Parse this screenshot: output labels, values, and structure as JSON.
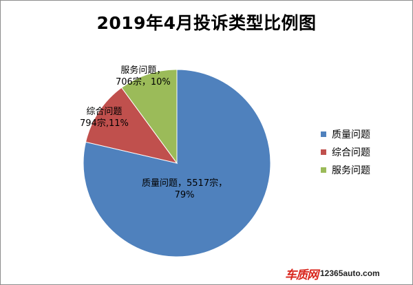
{
  "chart_data": {
    "type": "pie",
    "title": "2019年4月投诉类型比例图",
    "categories": [
      "质量问题",
      "综合问题",
      "服务问题"
    ],
    "values": [
      5517,
      794,
      706
    ],
    "percent_labels": [
      "79%",
      "11%",
      "10%"
    ],
    "data_labels": [
      [
        "质量问题，5517宗，",
        "79%"
      ],
      [
        "综合问题",
        "794宗,11%"
      ],
      [
        "服务问题，",
        "706宗，10%"
      ]
    ],
    "colors": [
      "#4f81bd",
      "#c0504d",
      "#9bbb59"
    ],
    "legend": {
      "position": "right",
      "entries": [
        "质量问题",
        "综合问题",
        "服务问题"
      ]
    }
  },
  "watermark": {
    "logo_text": "车质网",
    "site_text": "12365auto.com"
  }
}
